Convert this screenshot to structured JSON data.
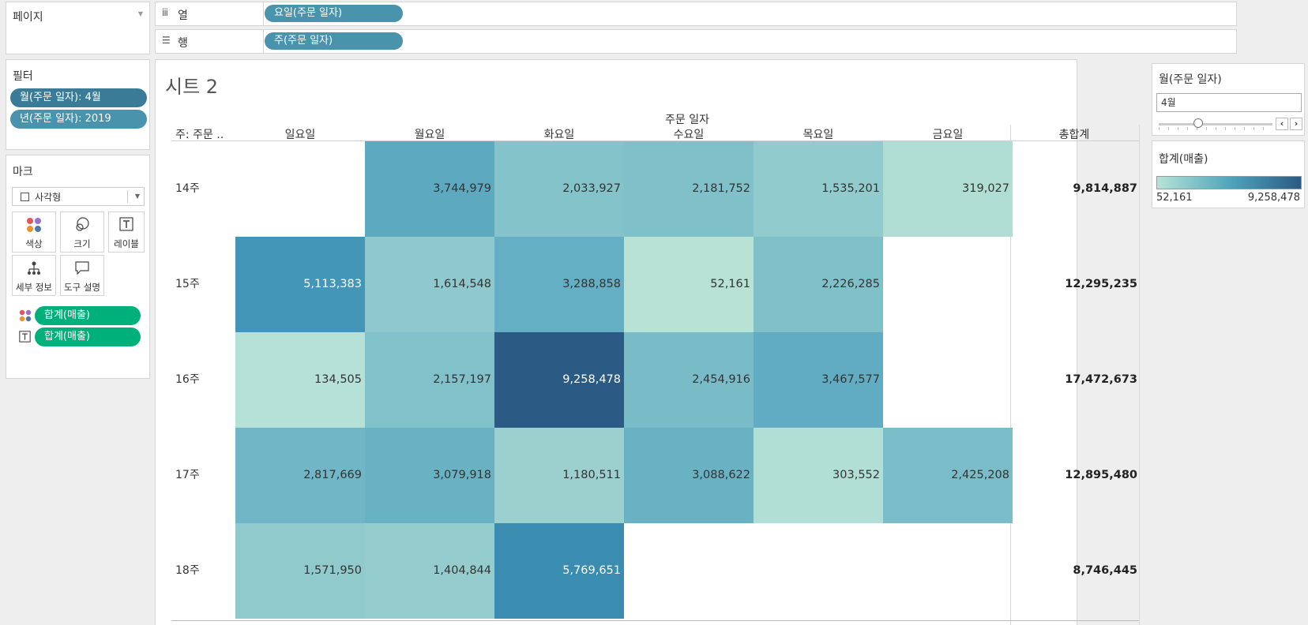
{
  "shelves": {
    "pages_label": "페이지",
    "columns_label": "열",
    "rows_label": "행",
    "columns_pill": "요일(주문 일자)",
    "rows_pill": "주(주문 일자)"
  },
  "filters": {
    "title": "필터",
    "items": [
      "월(주문 일자): 4월",
      "년(주문 일자): 2019"
    ]
  },
  "marks": {
    "title": "마크",
    "mark_type": "사각형",
    "buttons": [
      "색상",
      "크기",
      "레이블",
      "세부 정보",
      "도구 설명"
    ],
    "fields": [
      "합계(매출)",
      "합계(매출)"
    ]
  },
  "sheet": {
    "title": "시트 2",
    "column_group_header": "주문 일자",
    "row_header": "주: 주문 ..",
    "total_header": "총합계"
  },
  "chart_data": {
    "type": "heatmap",
    "row_header": "주: 주문 ..",
    "column_group_header": "주문 일자",
    "columns": [
      "일요일",
      "월요일",
      "화요일",
      "수요일",
      "목요일",
      "금요일"
    ],
    "rows": [
      {
        "label": "14주",
        "values": [
          null,
          3744979,
          2033927,
          2181752,
          1535201,
          319027
        ],
        "display": [
          null,
          "3,744,979",
          "2,033,927",
          "2,181,752",
          "1,535,201",
          "319,027"
        ],
        "total": "9,814,887"
      },
      {
        "label": "15주",
        "values": [
          5113383,
          1614548,
          3288858,
          52161,
          2226285,
          null
        ],
        "display": [
          "5,113,383",
          "1,614,548",
          "3,288,858",
          "52,161",
          "2,226,285",
          null
        ],
        "total": "12,295,235"
      },
      {
        "label": "16주",
        "values": [
          134505,
          2157197,
          9258478,
          2454916,
          3467577,
          null
        ],
        "display": [
          "134,505",
          "2,157,197",
          "9,258,478",
          "2,454,916",
          "3,467,577",
          null
        ],
        "total": "17,472,673"
      },
      {
        "label": "17주",
        "values": [
          2817669,
          3079918,
          1180511,
          3088622,
          303552,
          2425208
        ],
        "display": [
          "2,817,669",
          "3,079,918",
          "1,180,511",
          "3,088,622",
          "303,552",
          "2,425,208"
        ],
        "total": "12,895,480"
      },
      {
        "label": "18주",
        "values": [
          1571950,
          1404844,
          5769651,
          null,
          null,
          null
        ],
        "display": [
          "1,571,950",
          "1,404,844",
          "5,769,651",
          null,
          null,
          null
        ],
        "total": "8,746,445"
      }
    ],
    "total_header": "총합계",
    "color_min": 52161,
    "color_max": 9258478,
    "color_scale": [
      "#b8e2d6",
      "#2b5a84"
    ]
  },
  "month_filter": {
    "title": "월(주문 일자)",
    "value": "4월"
  },
  "legend": {
    "title": "합계(매출)",
    "min_label": "52,161",
    "max_label": "9,258,478"
  }
}
